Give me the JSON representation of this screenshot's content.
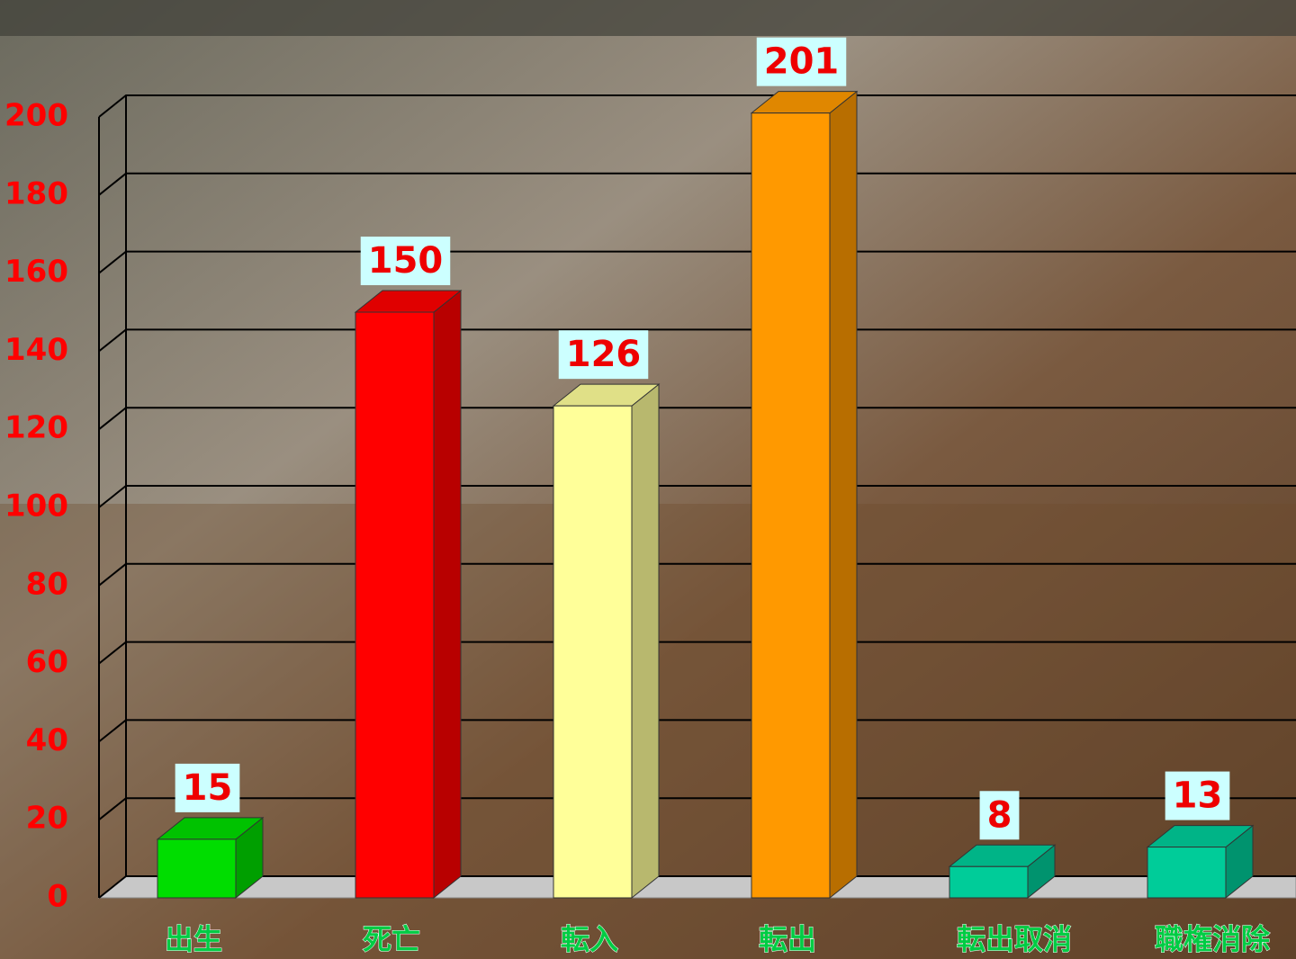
{
  "chart_data": {
    "type": "bar3d",
    "categories": [
      "出生",
      "死亡",
      "転入",
      "転出",
      "転出取消",
      "職権消除"
    ],
    "values": [
      15,
      150,
      126,
      201,
      8,
      13
    ],
    "colors": [
      "#00dd00",
      "#ff0000",
      "#ffff99",
      "#ff9900",
      "#00cc99",
      "#00cc99"
    ],
    "ylim": [
      0,
      200
    ],
    "yticks": [
      0,
      20,
      40,
      60,
      80,
      100,
      120,
      140,
      160,
      180,
      200
    ],
    "grid": true
  }
}
